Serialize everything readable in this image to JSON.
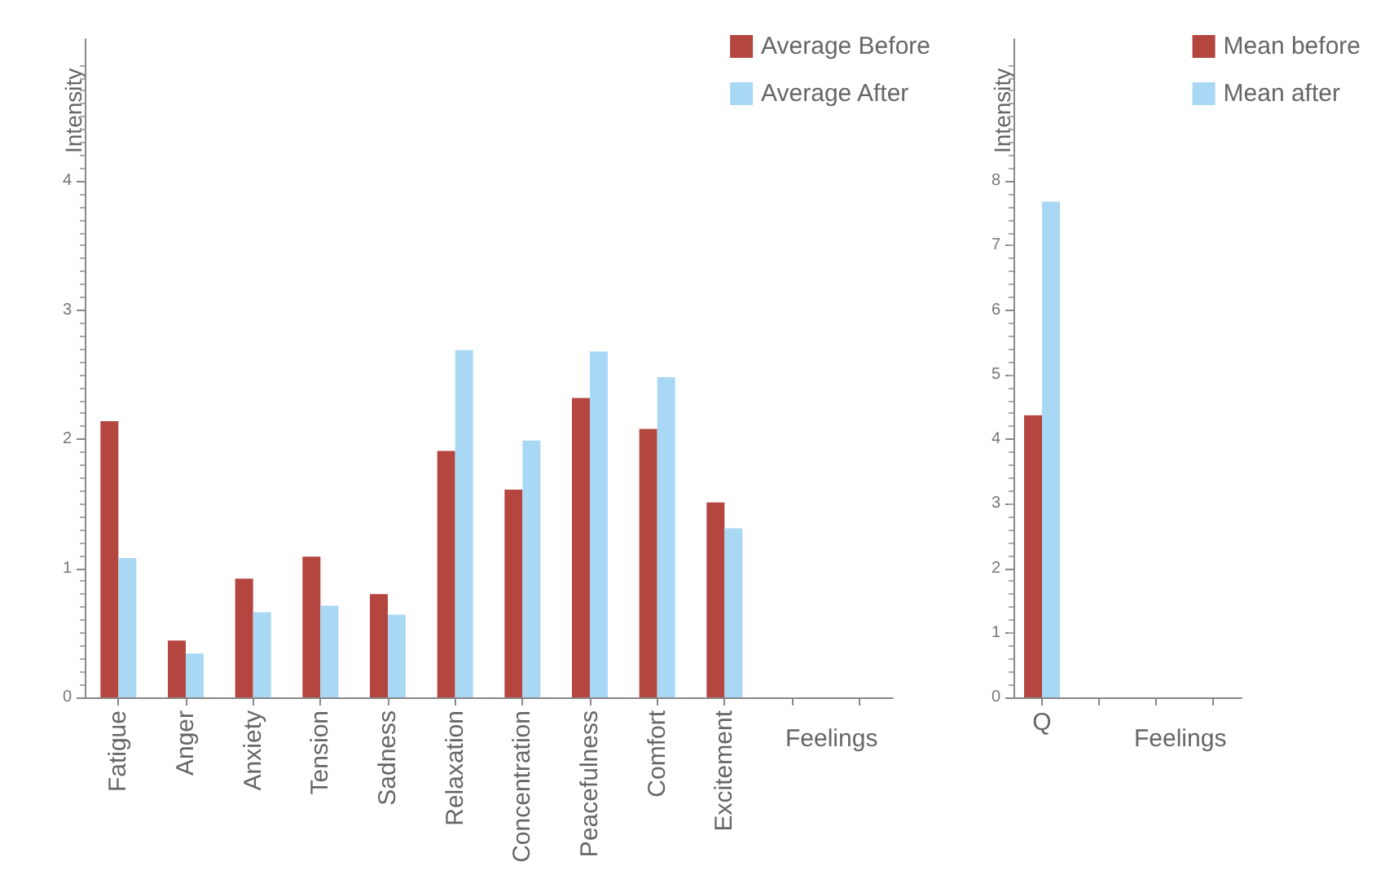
{
  "chart_data": [
    {
      "type": "bar",
      "xlabel": "Feelings",
      "ylabel": "Intensity",
      "categories": [
        "Fatigue",
        "Anger",
        "Anxiety",
        "Tension",
        "Sadness",
        "Relaxation",
        "Concentration",
        "Peacefulness",
        "Comfort",
        "Excitement"
      ],
      "ylim": [
        0,
        5.1
      ],
      "yticks": [
        0,
        1,
        2,
        3,
        4
      ],
      "grid": false,
      "legend": "top right",
      "series": [
        {
          "name": "Average Before",
          "color": "#b5453f",
          "values": [
            2.14,
            0.44,
            0.92,
            1.09,
            0.8,
            1.91,
            1.61,
            2.32,
            2.08,
            1.51
          ]
        },
        {
          "name": "Average After",
          "color": "#a9d8f5",
          "values": [
            1.08,
            0.34,
            0.66,
            0.71,
            0.64,
            2.69,
            1.99,
            2.68,
            2.48,
            1.31
          ]
        }
      ]
    },
    {
      "type": "bar",
      "xlabel": "Feelings",
      "ylabel": "Intensity",
      "categories": [
        "Q"
      ],
      "ylim": [
        0,
        10.2
      ],
      "yticks": [
        0,
        1,
        2,
        3,
        4,
        5,
        6,
        7,
        8
      ],
      "grid": false,
      "legend": "top right",
      "series": [
        {
          "name": "Mean before",
          "color": "#b5453f",
          "values": [
            4.37
          ]
        },
        {
          "name": "Mean after",
          "color": "#a9d8f5",
          "values": [
            7.68
          ]
        }
      ]
    }
  ]
}
